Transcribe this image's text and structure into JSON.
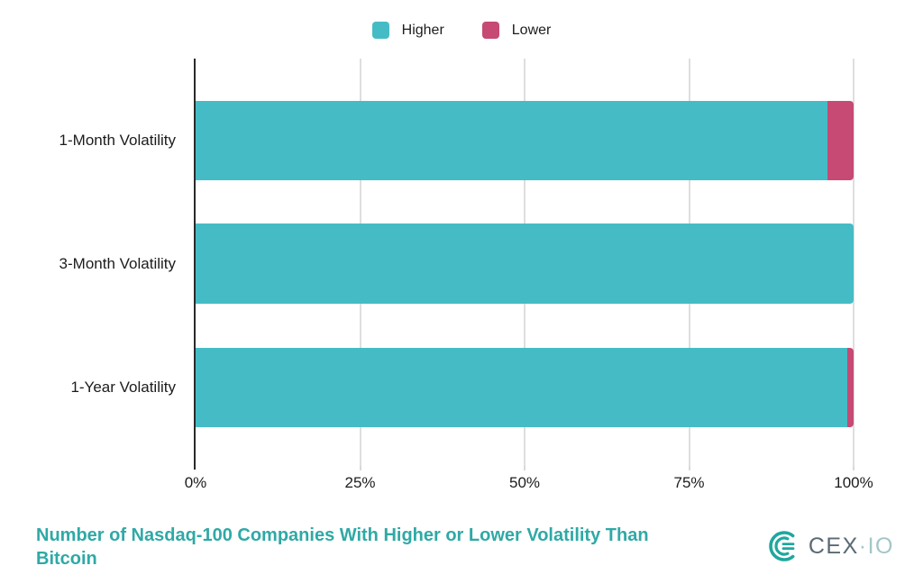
{
  "chart_data": {
    "type": "bar",
    "orientation": "horizontal",
    "stacked": true,
    "unit": "%",
    "title": "Number of Nasdaq-100 Companies With Higher or Lower Volatility Than Bitcoin",
    "categories": [
      "1-Month Volatility",
      "3-Month Volatility",
      "1-Year Volatility"
    ],
    "series": [
      {
        "name": "Higher",
        "color": "#45BCC5",
        "values": [
          96,
          100,
          99
        ]
      },
      {
        "name": "Lower",
        "color": "#C64A73",
        "values": [
          4,
          0,
          1
        ]
      }
    ],
    "x_ticks": [
      {
        "value": 0,
        "label": "0%"
      },
      {
        "value": 25,
        "label": "25%"
      },
      {
        "value": 50,
        "label": "50%"
      },
      {
        "value": 75,
        "label": "75%"
      },
      {
        "value": 100,
        "label": "100%"
      }
    ],
    "xlim": [
      0,
      100
    ],
    "grid": true,
    "legend_position": "top"
  },
  "colors": {
    "accent_title": "#2FA9A6",
    "higher": "#45BCC5",
    "lower": "#C64A73",
    "gridline": "#DEDEDE",
    "axis": "#2A2A2A"
  },
  "branding": {
    "text_primary": "CEX",
    "separator": "·",
    "text_secondary": "IO",
    "icon_color": "#1FA79E",
    "text_color": "#5A6A74",
    "io_color": "#A4C6C7"
  }
}
